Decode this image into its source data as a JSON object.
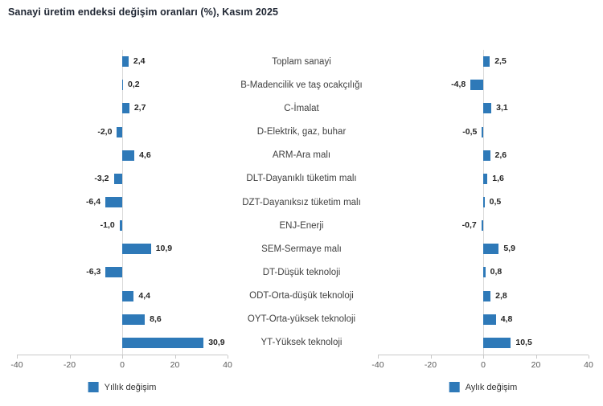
{
  "title": "Sanayi üretim endeksi değişim oranları (%), Kasım 2025",
  "colors": {
    "bar": "#2E79B8",
    "title": "#1F2633",
    "value_label": "#262626",
    "category_label": "#3F3F3F",
    "tick_label": "#595959",
    "axis_line": "#C8C8C8",
    "zero_line": "#D9D9D9"
  },
  "chart_data": {
    "type": "bar",
    "orientation": "horizontal",
    "layout": "two mirrored panels with shared category labels in a center column; only the zero gridline is drawn; legend centered below each panel",
    "categories": [
      "Toplam sanayi",
      "B-Madencilik ve taş ocakçılığı",
      "C-İmalat",
      "D-Elektrik, gaz, buhar",
      "ARM-Ara malı",
      "DLT-Dayanıklı tüketim malı",
      "DZT-Dayanıksız tüketim malı",
      "ENJ-Enerji",
      "SEM-Sermaye malı",
      "DT-Düşük teknoloji",
      "ODT-Orta-düşük teknoloji",
      "OYT-Orta-yüksek teknoloji",
      "YT-Yüksek teknoloji"
    ],
    "series": [
      {
        "name": "Yıllık değişim",
        "panel": "left",
        "values": [
          2.4,
          0.2,
          2.7,
          -2.0,
          4.6,
          -3.2,
          -6.4,
          -1.0,
          10.9,
          -6.3,
          4.4,
          8.6,
          30.9
        ],
        "value_labels": [
          "2,4",
          "0,2",
          "2,7",
          "-2,0",
          "4,6",
          "-3,2",
          "-6,4",
          "-1,0",
          "10,9",
          "-6,3",
          "4,4",
          "8,6",
          "30,9"
        ]
      },
      {
        "name": "Aylık değişim",
        "panel": "right",
        "values": [
          2.5,
          -4.8,
          3.1,
          -0.5,
          2.6,
          1.6,
          0.5,
          -0.7,
          5.9,
          0.8,
          2.8,
          4.8,
          10.5
        ],
        "value_labels": [
          "2,5",
          "-4,8",
          "3,1",
          "-0,5",
          "2,6",
          "1,6",
          "0,5",
          "-0,7",
          "5,9",
          "0,8",
          "2,8",
          "4,8",
          "10,5"
        ]
      }
    ],
    "xlim": [
      -40,
      40
    ],
    "xticks": [
      -40,
      -20,
      0,
      20,
      40
    ],
    "xtick_labels": [
      "-40",
      "-20",
      "0",
      "20",
      "40"
    ],
    "grid": "off"
  }
}
